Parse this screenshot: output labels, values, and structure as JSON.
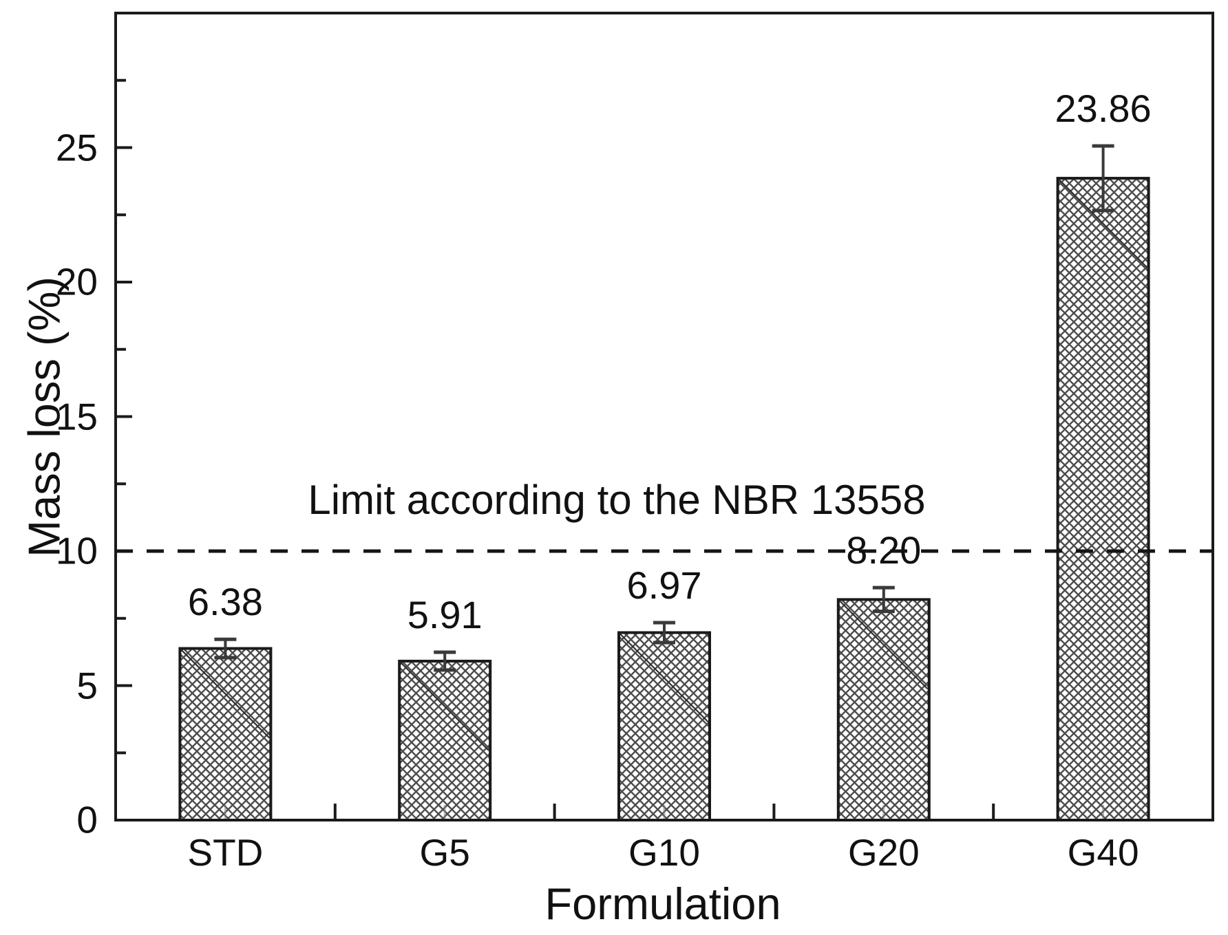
{
  "chart_data": {
    "type": "bar",
    "title": "",
    "xlabel": "Formulation",
    "ylabel": "Mass loss (%)",
    "categories": [
      "STD",
      "G5",
      "G10",
      "G20",
      "G40"
    ],
    "values": [
      6.38,
      5.91,
      6.97,
      8.2,
      23.86
    ],
    "value_labels": [
      "6.38",
      "5.91",
      "6.97",
      "8.20",
      "23.86"
    ],
    "errors": [
      0.34,
      0.33,
      0.37,
      0.44,
      1.2
    ],
    "ylim": [
      0,
      30
    ],
    "yticks": [
      0,
      5,
      10,
      15,
      20,
      25
    ],
    "ytick_minor_step": 2.5,
    "grid": false,
    "legend": null,
    "reference_line": {
      "y": 10,
      "style": "dashed",
      "label": "Limit according to the NBR 13558"
    },
    "bar_style": {
      "fill": "#ffffff",
      "hatch": "crosshatch",
      "hatch_color": "#4d4d4d",
      "border_color": "#1a1a1a"
    },
    "colors": {
      "axis": "#1a1a1a",
      "error_bar": "#3a3a3a",
      "dashed_line": "#151515",
      "text": "#111111"
    }
  }
}
